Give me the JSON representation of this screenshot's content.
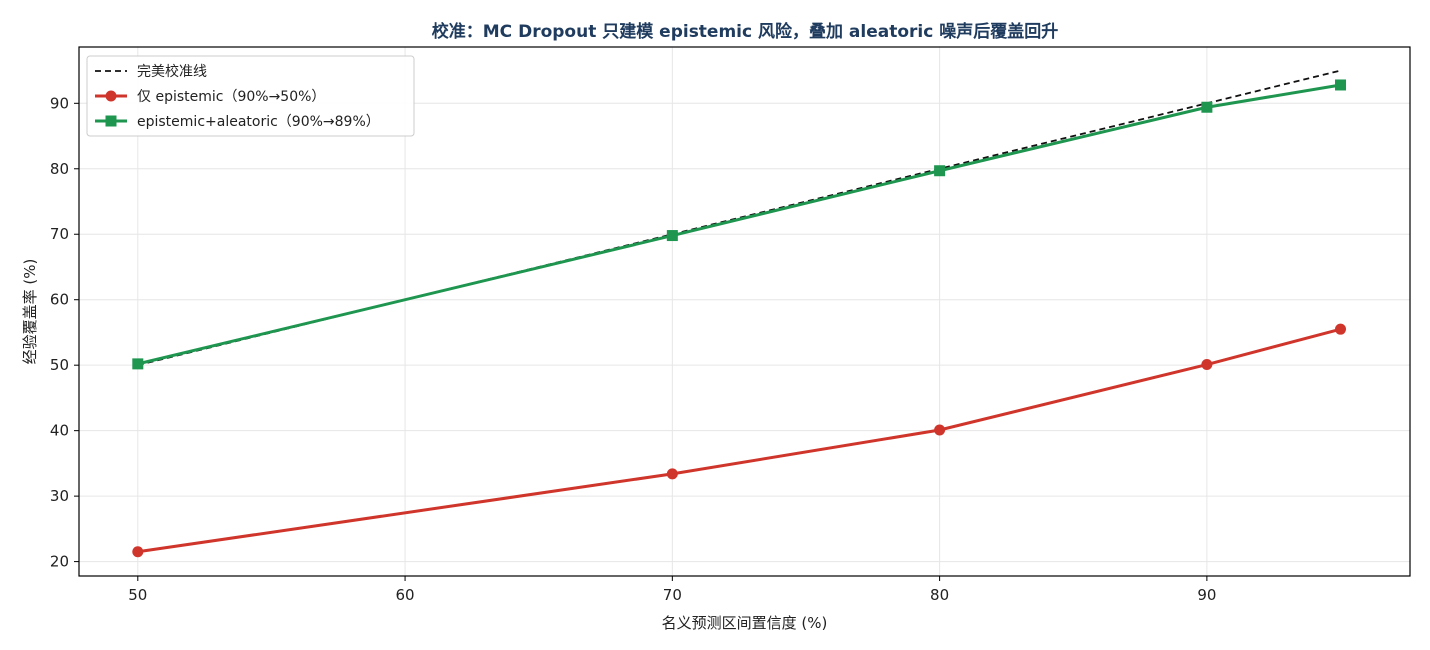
{
  "chart_data": {
    "type": "line",
    "title": "校准：MC Dropout 只建模 epistemic 风险，叠加 aleatoric 噪声后覆盖回升",
    "xlabel": "名义预测区间置信度 (%)",
    "ylabel": "经验覆盖率 (%)",
    "xlim": [
      47.8,
      97.6
    ],
    "ylim": [
      17.8,
      98.6
    ],
    "xticks": [
      50,
      60,
      70,
      80,
      90
    ],
    "yticks": [
      20,
      30,
      40,
      50,
      60,
      70,
      80,
      90
    ],
    "grid": true,
    "legend_position": "top-left",
    "series": [
      {
        "name": "完美校准线",
        "style": "dashed",
        "marker": "none",
        "color": "#111111",
        "x": [
          50,
          60,
          70,
          80,
          90,
          95
        ],
        "y": [
          50,
          60,
          70,
          80,
          90,
          95
        ]
      },
      {
        "name": "仅 epistemic（90%→50%）",
        "style": "solid",
        "marker": "circle",
        "color": "#d0352b",
        "x": [
          50,
          70,
          80,
          90,
          95
        ],
        "y": [
          21.5,
          33.4,
          40.1,
          50.1,
          55.5
        ]
      },
      {
        "name": "epistemic+aleatoric（90%→89%）",
        "style": "solid",
        "marker": "square",
        "color": "#1f9650",
        "x": [
          50,
          70,
          80,
          90,
          95
        ],
        "y": [
          50.2,
          69.8,
          79.7,
          89.4,
          92.8
        ]
      }
    ]
  }
}
